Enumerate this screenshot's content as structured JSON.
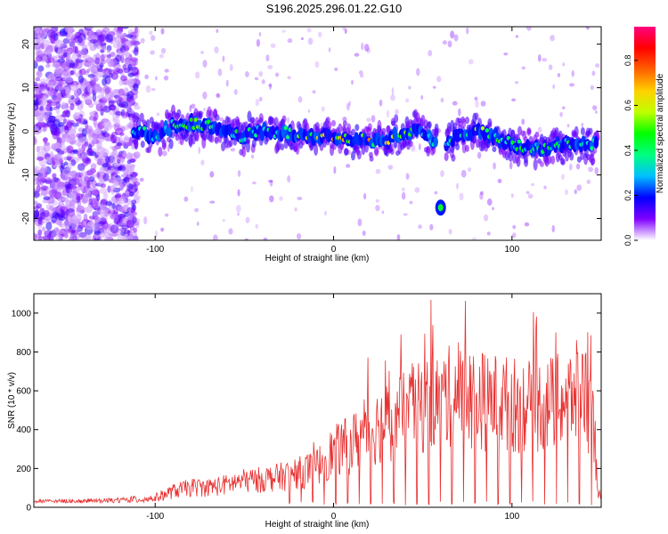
{
  "title": "S196.2025.296.01.22.G10",
  "chart_data": [
    {
      "type": "heatmap",
      "xlabel": "Height of straight line (km)",
      "ylabel": "Frequency (Hz)",
      "xlim": [
        -168,
        150
      ],
      "ylim": [
        -25,
        24
      ],
      "x_ticks": [
        -100,
        0,
        100
      ],
      "y_ticks": [
        20,
        10,
        0,
        -10,
        -20
      ],
      "colorbar": {
        "label": "Normalized spectral amplitude",
        "range": [
          0,
          0.95
        ],
        "ticks": [
          "0.0",
          "0.2",
          "0.4",
          "0.6",
          "0.8"
        ],
        "colors": [
          "#ffffff",
          "#8000ff",
          "#0000ff",
          "#00c0ff",
          "#00ff80",
          "#00ff00",
          "#c0ff00",
          "#ffd000",
          "#ff6000",
          "#ff0000",
          "#ff0080"
        ]
      },
      "ridge": {
        "x": [
          -112,
          -100,
          -90,
          -80,
          -70,
          -60,
          -50,
          -40,
          -30,
          -20,
          -10,
          0,
          10,
          20,
          30,
          40,
          50,
          60,
          63,
          70,
          80,
          90,
          100,
          110,
          120,
          130,
          140,
          148
        ],
        "y": [
          0,
          -1,
          1,
          2,
          1,
          0,
          -1,
          0,
          0,
          -1,
          -1,
          -1,
          -2,
          -2,
          -2,
          0,
          0,
          -3,
          -3,
          -1,
          0,
          -1,
          -3,
          -4,
          -4,
          -3,
          -3,
          -3
        ],
        "amplitude": [
          0.35,
          0.4,
          0.45,
          0.5,
          0.5,
          0.45,
          0.45,
          0.45,
          0.45,
          0.55,
          0.65,
          0.75,
          0.75,
          0.7,
          0.6,
          0.5,
          0.45,
          0.35,
          0.4,
          0.5,
          0.55,
          0.5,
          0.45,
          0.45,
          0.45,
          0.45,
          0.45,
          0.4
        ]
      },
      "isolated_feature": {
        "x": 60,
        "y": -17.5,
        "amplitude": 0.45
      }
    },
    {
      "type": "line",
      "xlabel": "Height of straight line (km)",
      "ylabel": "SNR (10 * v/v)",
      "xlim": [
        -168,
        150
      ],
      "ylim": [
        0,
        1100
      ],
      "x_ticks": [
        -100,
        0,
        100
      ],
      "y_ticks": [
        0,
        200,
        400,
        600,
        800,
        1000
      ],
      "color": "#e83030",
      "series": [
        {
          "name": "SNR",
          "envelope_x": [
            -168,
            -140,
            -120,
            -110,
            -100,
            -90,
            -80,
            -70,
            -60,
            -50,
            -40,
            -30,
            -20,
            -10,
            0,
            10,
            20,
            30,
            40,
            50,
            60,
            70,
            80,
            90,
            100,
            110,
            120,
            130,
            140,
            145,
            148,
            150
          ],
          "envelope_y": [
            35,
            40,
            45,
            55,
            70,
            120,
            150,
            150,
            170,
            200,
            210,
            230,
            260,
            300,
            420,
            480,
            580,
            650,
            700,
            760,
            830,
            840,
            820,
            800,
            780,
            760,
            780,
            800,
            900,
            700,
            150,
            40
          ]
        }
      ]
    }
  ]
}
